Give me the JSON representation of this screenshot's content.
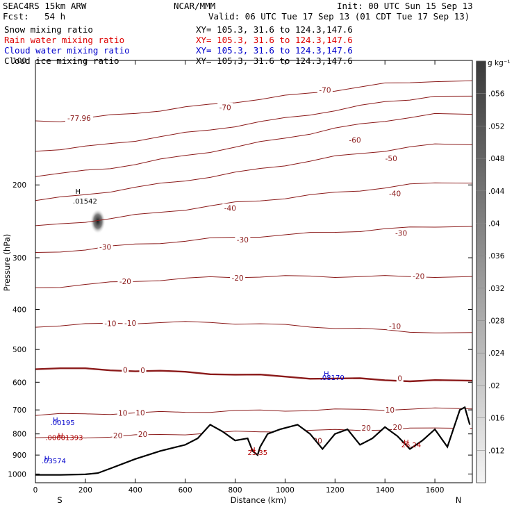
{
  "header": {
    "model": "SEAC4RS 15km ARW",
    "org": "NCAR/MMM",
    "init": "Init: 00 UTC Sun 15 Sep 13",
    "fcst_label": "Fcst:",
    "fcst_value": "54 h",
    "valid": "Valid: 06 UTC Tue 17 Sep 13 (01 CDT Tue 17 Sep 13)"
  },
  "fields": [
    {
      "name": "Snow mixing ratio",
      "color": "#000000",
      "xy": "XY= 105.3, 31.6 to 124.3,147.6"
    },
    {
      "name": "Rain water mixing ratio",
      "color": "#dd0000",
      "xy": "XY= 105.3, 31.6 to 124.3,147.6"
    },
    {
      "name": "Cloud water mixing ratio",
      "color": "#0000cc",
      "xy": "XY= 105.3, 31.6 to 124.3,147.6"
    },
    {
      "name": "Cloud ice mixing ratio",
      "color": "#000000",
      "xy": "XY= 105.3, 31.6 to 124.3,147.6"
    }
  ],
  "chart_data": {
    "type": "cross-section",
    "xlabel": "Distance (km)",
    "ylabel": "Pressure (hPa)",
    "xlim": [
      0,
      1750
    ],
    "ylim": [
      1050,
      100
    ],
    "y_scale": "log",
    "x_ticks": [
      "0",
      "200",
      "400",
      "600",
      "800",
      "1000",
      "1200",
      "1400",
      "1600"
    ],
    "x_tick_values": [
      0,
      200,
      400,
      600,
      800,
      1000,
      1200,
      1400,
      1600
    ],
    "y_ticks": [
      "100",
      "200",
      "300",
      "400",
      "500",
      "600",
      "700",
      "800",
      "900",
      "1000"
    ],
    "y_tick_values": [
      100,
      200,
      300,
      400,
      500,
      600,
      700,
      800,
      900,
      1000
    ],
    "endpoint_left": "S",
    "endpoint_right": "N",
    "colorbar": {
      "unit": "g kg⁻¹",
      "ticks": [
        ".056",
        ".052",
        ".048",
        ".044",
        ".04",
        ".036",
        ".032",
        ".028",
        ".024",
        ".02",
        ".016",
        ".012"
      ],
      "values": [
        0.056,
        0.052,
        0.048,
        0.044,
        0.04,
        0.036,
        0.032,
        0.028,
        0.024,
        0.02,
        0.016,
        0.012
      ],
      "min": 0.008,
      "max": 0.06
    },
    "temperature_contours": [
      {
        "label": "-77.96",
        "p": [
          140,
          140,
          138,
          136,
          134,
          132,
          130,
          128,
          126,
          124,
          122,
          120,
          118,
          116,
          114,
          113,
          112
        ]
      },
      {
        "label": "-70",
        "p": [
          165,
          164,
          162,
          159,
          156,
          153,
          150,
          147,
          144,
          141,
          138,
          135,
          132,
          129,
          126,
          124,
          122
        ]
      },
      {
        "label": "-60",
        "p": [
          190,
          188,
          185,
          182,
          178,
          174,
          170,
          166,
          162,
          158,
          154,
          150,
          146,
          143,
          140,
          137,
          135
        ]
      },
      {
        "label": "-50",
        "p": [
          218,
          215,
          211,
          207,
          203,
          199,
          195,
          191,
          187,
          183,
          179,
          175,
          171,
          168,
          165,
          162,
          160
        ]
      },
      {
        "label": "-40",
        "p": [
          252,
          249,
          245,
          241,
          237,
          233,
          229,
          225,
          221,
          218,
          215,
          212,
          209,
          206,
          203,
          200,
          198
        ]
      },
      {
        "label": "-30",
        "p": [
          293,
          290,
          286,
          282,
          279,
          276,
          273,
          270,
          268,
          266,
          264,
          262,
          260,
          258,
          256,
          254,
          252
        ]
      },
      {
        "label": "-20",
        "p": [
          355,
          352,
          348,
          345,
          342,
          339,
          337,
          335,
          334,
          333,
          333,
          333,
          333,
          333,
          333,
          333,
          333
        ]
      },
      {
        "label": "-10",
        "p": [
          440,
          437,
          435,
          433,
          431,
          430,
          430,
          430,
          432,
          434,
          437,
          440,
          443,
          446,
          449,
          452,
          455
        ]
      },
      {
        "label": "0",
        "p": [
          555,
          556,
          558,
          560,
          562,
          565,
          568,
          571,
          574,
          578,
          582,
          585,
          588,
          590,
          592,
          594,
          595
        ],
        "bold": true
      },
      {
        "label": "10",
        "p": [
          720,
          718,
          716,
          714,
          712,
          710,
          708,
          706,
          704,
          703,
          702,
          701,
          700,
          699,
          698,
          697,
          696
        ]
      },
      {
        "label": "20",
        "p": [
          820,
          818,
          815,
          812,
          808,
          804,
          800,
          796,
          792,
          790,
          788,
          786,
          784,
          782,
          780,
          778,
          776
        ]
      }
    ],
    "contour_x": [
      0,
      100,
      200,
      300,
      400,
      500,
      600,
      700,
      800,
      900,
      1000,
      1100,
      1200,
      1300,
      1400,
      1500,
      1600
    ],
    "contour_labels": [
      {
        "text": "-77.96",
        "x": 175,
        "p": 138
      },
      {
        "text": "-70",
        "x": 760,
        "p": 130
      },
      {
        "text": "-70",
        "x": 1160,
        "p": 118
      },
      {
        "text": "-60",
        "x": 1280,
        "p": 156
      },
      {
        "text": "-50",
        "x": 1425,
        "p": 173
      },
      {
        "text": "-40",
        "x": 780,
        "p": 228
      },
      {
        "text": "-40",
        "x": 1440,
        "p": 210
      },
      {
        "text": "-30",
        "x": 280,
        "p": 283
      },
      {
        "text": "-30",
        "x": 830,
        "p": 272
      },
      {
        "text": "-30",
        "x": 1465,
        "p": 262
      },
      {
        "text": "-20",
        "x": 360,
        "p": 343
      },
      {
        "text": "-20",
        "x": 810,
        "p": 336
      },
      {
        "text": "-20",
        "x": 1535,
        "p": 333
      },
      {
        "text": "-10",
        "x": 300,
        "p": 433
      },
      {
        "text": "-10",
        "x": 380,
        "p": 432
      },
      {
        "text": "-10",
        "x": 1440,
        "p": 440
      },
      {
        "text": "0",
        "x": 360,
        "p": 561
      },
      {
        "text": "0",
        "x": 430,
        "p": 562
      },
      {
        "text": "0",
        "x": 1460,
        "p": 588
      },
      {
        "text": "10",
        "x": 350,
        "p": 713
      },
      {
        "text": "10",
        "x": 420,
        "p": 712
      },
      {
        "text": "10",
        "x": 1420,
        "p": 701
      },
      {
        "text": "20",
        "x": 330,
        "p": 808
      },
      {
        "text": "20",
        "x": 430,
        "p": 802
      },
      {
        "text": "20",
        "x": 1130,
        "p": 833
      },
      {
        "text": "20",
        "x": 1325,
        "p": 775
      },
      {
        "text": "20",
        "x": 1450,
        "p": 772
      }
    ],
    "terrain": {
      "x": [
        0,
        100,
        200,
        250,
        300,
        400,
        500,
        600,
        650,
        700,
        750,
        800,
        850,
        870,
        890,
        900,
        930,
        980,
        1050,
        1100,
        1150,
        1200,
        1250,
        1300,
        1350,
        1400,
        1450,
        1500,
        1550,
        1600,
        1650,
        1700,
        1720,
        1740
      ],
      "p": [
        1005,
        1005,
        1002,
        995,
        970,
        920,
        880,
        850,
        820,
        760,
        790,
        830,
        820,
        880,
        900,
        860,
        800,
        780,
        760,
        800,
        870,
        800,
        780,
        850,
        820,
        770,
        810,
        870,
        830,
        780,
        860,
        700,
        690,
        760
      ]
    },
    "annotations": [
      {
        "text": "H",
        "x": 90,
        "p": 818,
        "color": "#b00000"
      },
      {
        "text": ".00001393",
        "x": 40,
        "p": 828,
        "color": "#b00000"
      },
      {
        "text": "H",
        "x": 160,
        "p": 210,
        "color": "#000000"
      },
      {
        "text": ".01542",
        "x": 150,
        "p": 222,
        "color": "#000000"
      },
      {
        "text": "H",
        "x": 860,
        "p": 886,
        "color": "#b00000"
      },
      {
        "text": "25.35",
        "x": 850,
        "p": 900,
        "color": "#b00000"
      },
      {
        "text": "H",
        "x": 1475,
        "p": 848,
        "color": "#b00000"
      },
      {
        "text": "26.24",
        "x": 1465,
        "p": 862,
        "color": "#b00000"
      },
      {
        "text": "H",
        "x": 1155,
        "p": 580,
        "color": "#0000cc"
      },
      {
        "text": ".08170",
        "x": 1140,
        "p": 592,
        "color": "#0000cc"
      },
      {
        "text": "H",
        "x": 70,
        "p": 750,
        "color": "#0000cc"
      },
      {
        "text": ".00195",
        "x": 60,
        "p": 762,
        "color": "#0000cc"
      },
      {
        "text": "H",
        "x": 35,
        "p": 930,
        "color": "#0000cc"
      },
      {
        "text": ".03574",
        "x": 25,
        "p": 942,
        "color": "#0000cc"
      }
    ],
    "cloud_ice_max": {
      "x": 250,
      "p": 245,
      "value": 0.058
    }
  }
}
